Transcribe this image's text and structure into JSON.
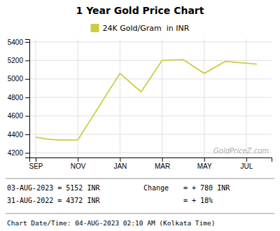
{
  "chart_data": {
    "type": "line",
    "title": "1 Year Gold Price Chart",
    "x": [
      0,
      0.5,
      1,
      2,
      3,
      4,
      5,
      6,
      7,
      8,
      9,
      10.5
    ],
    "series": [
      {
        "name": "24K Gold/Gram  in INR",
        "color": "#cccc44",
        "values": [
          4370,
          4350,
          4340,
          4340,
          4700,
          5060,
          4860,
          5200,
          5210,
          5060,
          5190,
          5160
        ]
      }
    ],
    "xlim": [
      -0.3,
      11.2
    ],
    "xticks": [
      {
        "value": 0,
        "label": "SEP"
      },
      {
        "value": 2,
        "label": "NOV"
      },
      {
        "value": 4,
        "label": "JAN"
      },
      {
        "value": 6,
        "label": "MAR"
      },
      {
        "value": 8,
        "label": "MAY"
      },
      {
        "value": 10,
        "label": "JUL"
      }
    ],
    "ylim": [
      4150,
      5430
    ],
    "yticks": [
      4200,
      4400,
      4600,
      4800,
      5000,
      5200,
      5400
    ],
    "grid": true,
    "legend": "top",
    "annotations": [
      "GoldPriceZ.com",
      "03-AUG-2023 = 5152 INR",
      "31-AUG-2022 = 4372 INR",
      "Change",
      "= + 780 INR",
      "= + 18%",
      "Chart Date/Time: 04-AUG-2023 02:10 AM (Kolkata Time)"
    ]
  }
}
